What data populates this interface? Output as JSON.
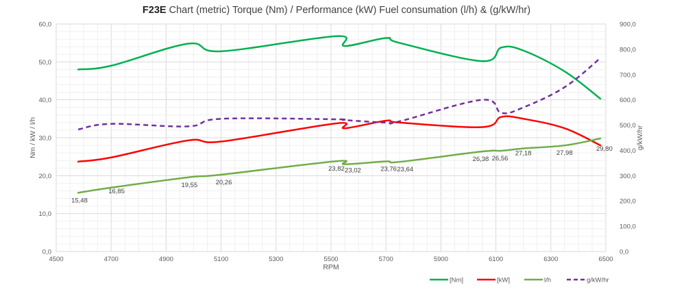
{
  "chart_data": {
    "type": "line",
    "title_bold": "F23E",
    "title_rest": " Chart (metric)  Torque (Nm) / Performance (kW) Fuel consumation (l/h) & (g/kW/hr)",
    "xlabel": "RPM",
    "ylabel": "Nm / kW / l/h",
    "y2label": "g/kW/hr",
    "xlim": [
      4500,
      6500
    ],
    "ylim": [
      0,
      60
    ],
    "y2lim": [
      0,
      900
    ],
    "xticks": [
      "4500",
      "4700",
      "4900",
      "5100",
      "5300",
      "5500",
      "5700",
      "5900",
      "6100",
      "6300",
      "6500"
    ],
    "xtick_values": [
      4500,
      4700,
      4900,
      5100,
      5300,
      5500,
      5700,
      5900,
      6100,
      6300,
      6500
    ],
    "yticks": [
      "0,0",
      "10,0",
      "20,0",
      "30,0",
      "40,0",
      "50,0",
      "60,0"
    ],
    "ytick_values": [
      0,
      10,
      20,
      30,
      40,
      50,
      60
    ],
    "y2ticks": [
      "0,0",
      "100,0",
      "200,0",
      "300,0",
      "400,0",
      "500,0",
      "600,0",
      "700,0",
      "800,0",
      "900,0"
    ],
    "y2tick_values": [
      0,
      100,
      200,
      300,
      400,
      500,
      600,
      700,
      800,
      900
    ],
    "grid": true,
    "legend_position": "bottom-right",
    "x": [
      4580,
      4700,
      4980,
      5100,
      5520,
      5550,
      5700,
      5750,
      6050,
      6120,
      6200,
      6350,
      6480
    ],
    "series": [
      {
        "name": "[Nm]",
        "color": "#00b050",
        "axis": "left",
        "dashed": false,
        "values": [
          48.0,
          49.0,
          54.8,
          52.8,
          56.8,
          54.2,
          56.3,
          55.0,
          50.2,
          53.8,
          53.0,
          47.5,
          40.3
        ]
      },
      {
        "name": "[kW]",
        "color": "#ff0000",
        "axis": "left",
        "dashed": false,
        "values": [
          23.7,
          24.8,
          29.3,
          29.0,
          33.8,
          32.5,
          34.5,
          34.0,
          32.8,
          35.5,
          35.0,
          32.5,
          28.0
        ]
      },
      {
        "name": "l/h",
        "color": "#70ad47",
        "axis": "left",
        "dashed": false,
        "values": [
          15.48,
          16.85,
          19.55,
          20.26,
          23.82,
          23.02,
          23.76,
          23.64,
          26.38,
          26.56,
          27.18,
          27.98,
          29.8
        ],
        "labels": [
          "15,48",
          "16,85",
          "19,55",
          "20,26",
          "23,82",
          "23,02",
          "23,76",
          "23,64",
          "26,38",
          "26,56",
          "27,18",
          "27,98",
          "29,80"
        ]
      },
      {
        "name": "g/kW/hr",
        "color": "#7030a0",
        "axis": "right",
        "dashed": true,
        "values": [
          483,
          505,
          495,
          525,
          523,
          520,
          510,
          515,
          600,
          548,
          570,
          650,
          765
        ]
      }
    ]
  }
}
